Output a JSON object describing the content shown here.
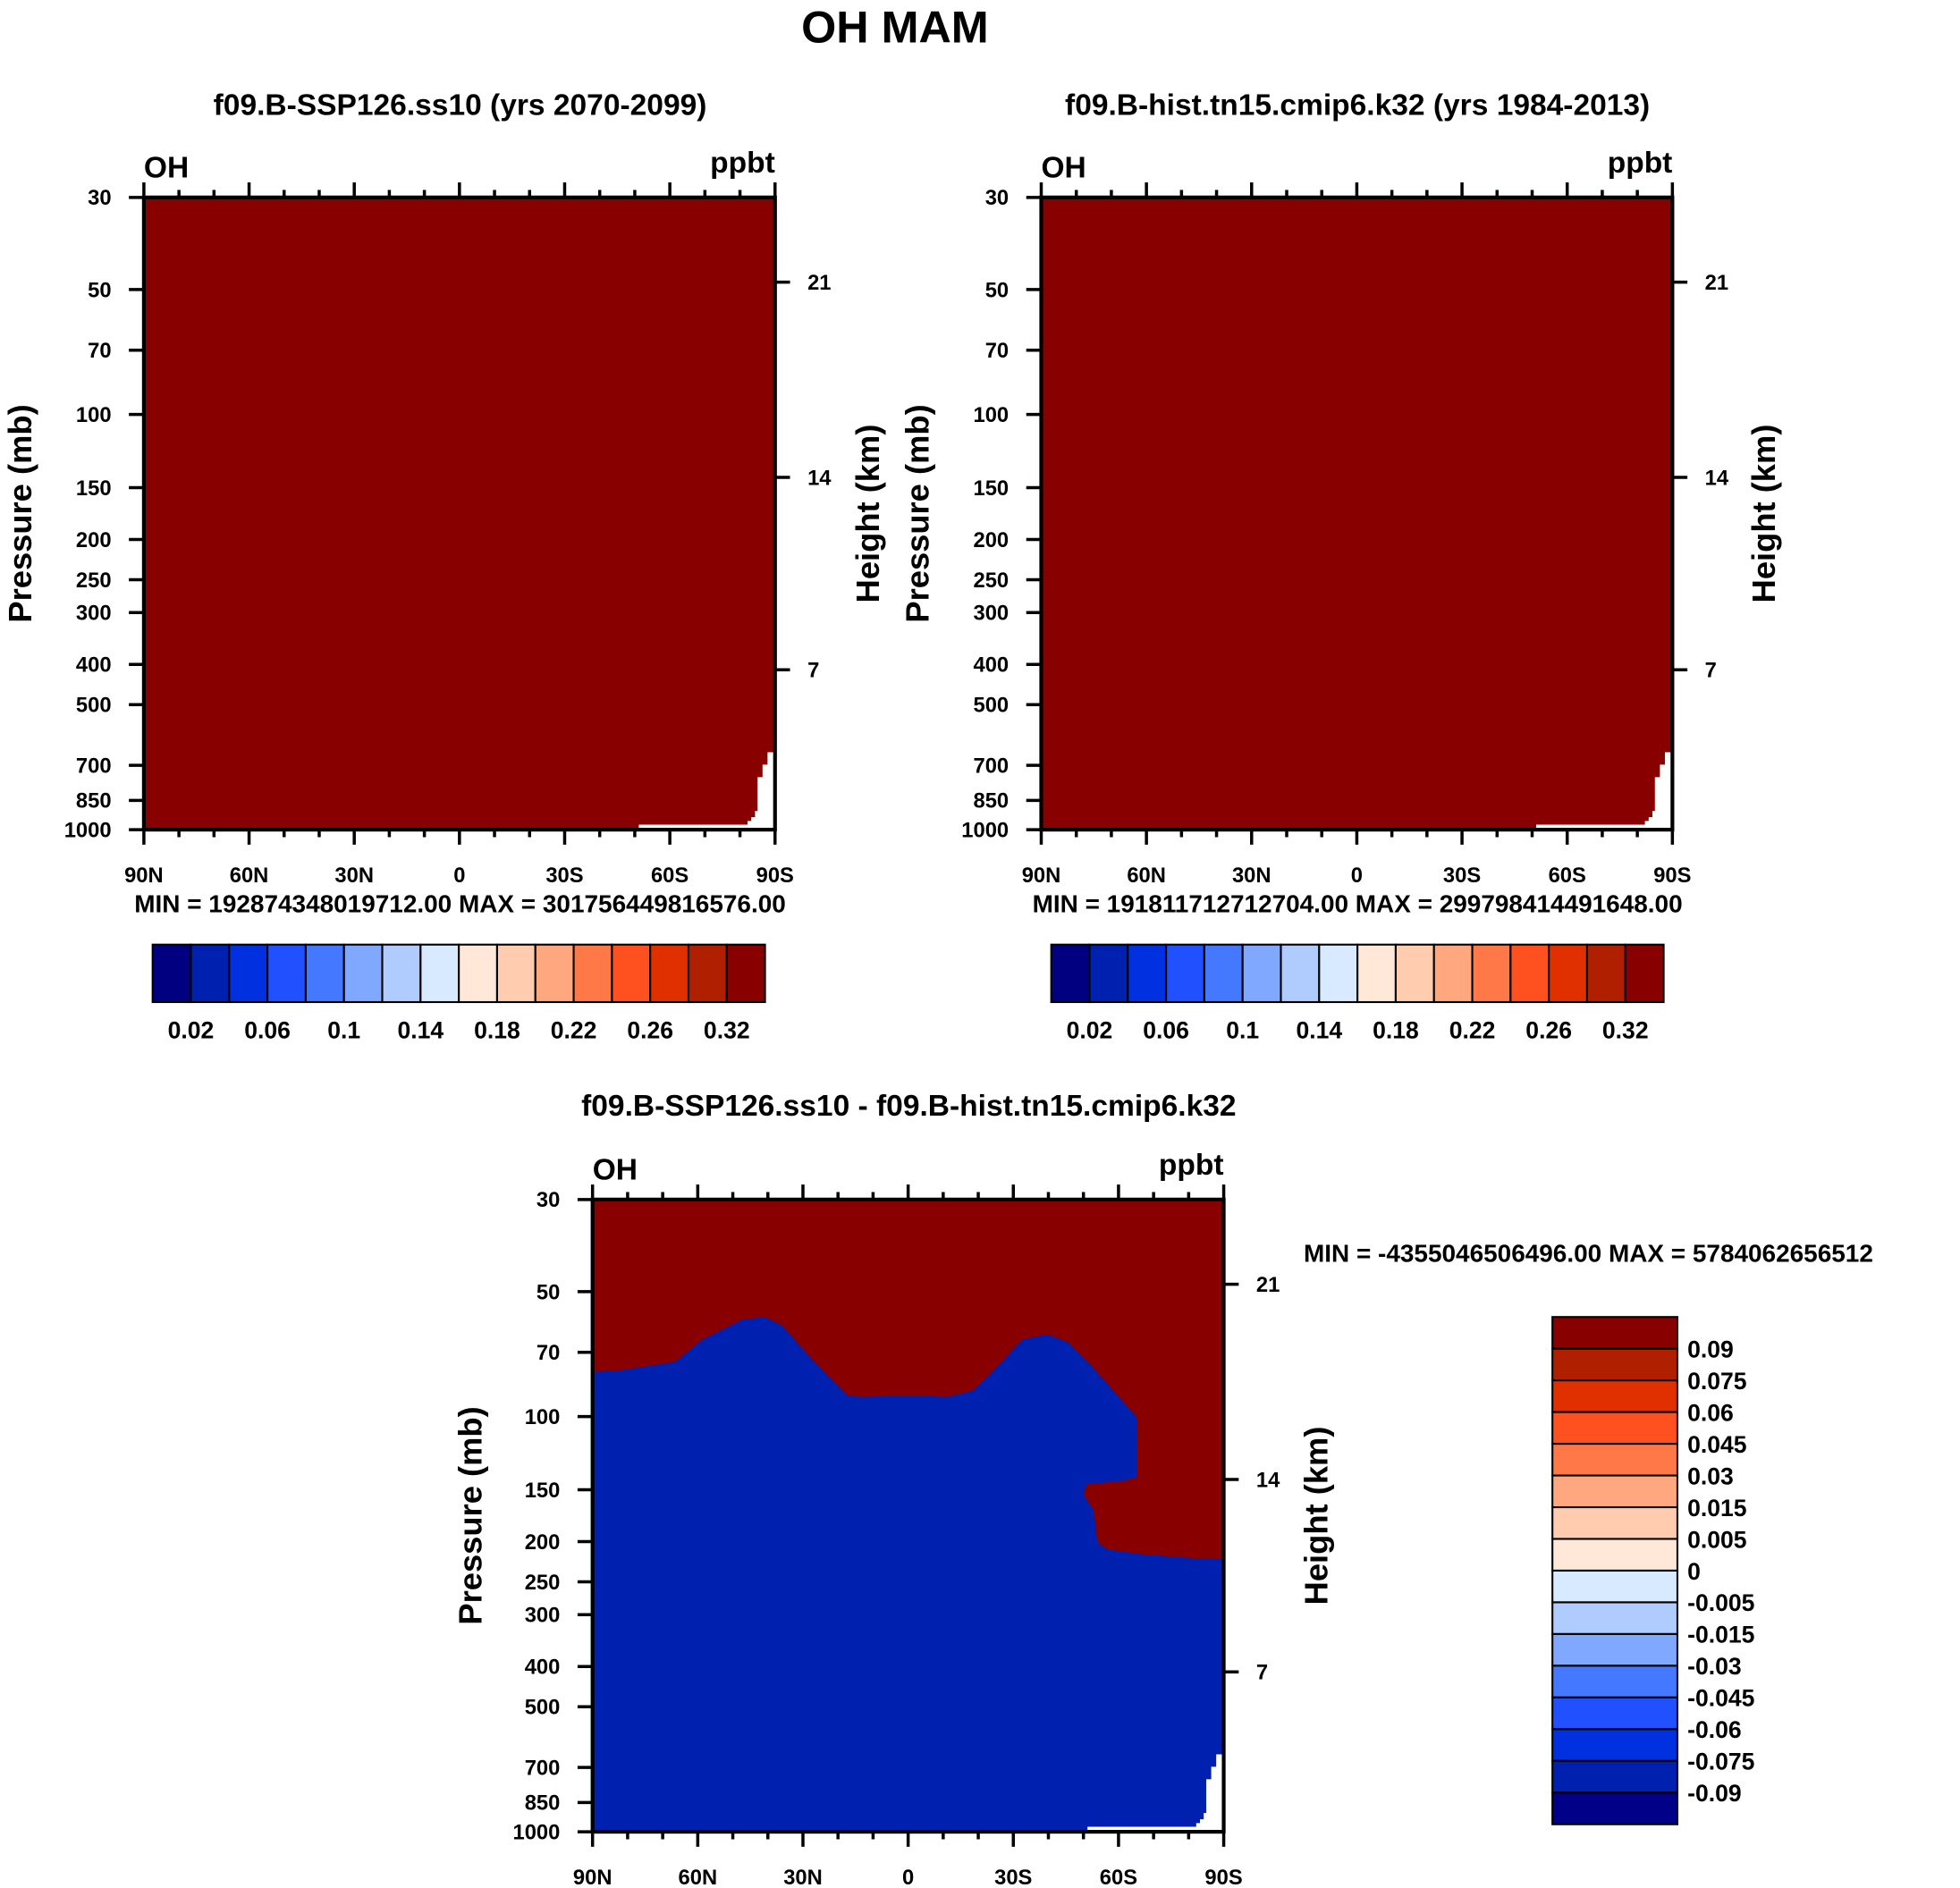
{
  "chart_data": {
    "type": "heatmap",
    "title": "OH MAM",
    "axes": {
      "x_tick_labels": [
        "90N",
        "60N",
        "30N",
        "0",
        "30S",
        "60S",
        "90S"
      ],
      "x_range": [
        90,
        -90
      ],
      "y_ticks": [
        30,
        50,
        70,
        100,
        150,
        200,
        250,
        300,
        400,
        500,
        700,
        850,
        1000
      ],
      "y_range": [
        30,
        1000
      ],
      "y_scale": "log",
      "y2_tick_labels": [
        "21",
        "14",
        "7"
      ],
      "ylabel": "Pressure (mb)",
      "y2label": "Height (km)"
    },
    "panels": [
      {
        "title": "f09.B-SSP126.ss10 (yrs 2070-2099)",
        "left_label": "OH",
        "right_label": "ppbt",
        "min_max": "MIN = 192874348019712.00  MAX = 301756449816576.00",
        "fill_level_index": 15,
        "colorbar": {
          "orientation": "horizontal",
          "colors": [
            "#000080",
            "#0020b0",
            "#0030e0",
            "#2050ff",
            "#4478ff",
            "#80a8ff",
            "#b0ccff",
            "#d8eaff",
            "#ffe8d8",
            "#ffccb0",
            "#ffa880",
            "#ff7848",
            "#ff5020",
            "#e03000",
            "#b02000",
            "#880000"
          ],
          "labels": [
            "0.02",
            "0.06",
            "0.1",
            "0.14",
            "0.18",
            "0.22",
            "0.26",
            "0.32"
          ]
        }
      },
      {
        "title": "f09.B-hist.tn15.cmip6.k32 (yrs 1984-2013)",
        "left_label": "OH",
        "right_label": "ppbt",
        "min_max": "MIN = 191811712712704.00  MAX = 299798414491648.00",
        "fill_level_index": 15,
        "colorbar": {
          "orientation": "horizontal",
          "colors": [
            "#000080",
            "#0020b0",
            "#0030e0",
            "#2050ff",
            "#4478ff",
            "#80a8ff",
            "#b0ccff",
            "#d8eaff",
            "#ffe8d8",
            "#ffccb0",
            "#ffa880",
            "#ff7848",
            "#ff5020",
            "#e03000",
            "#b02000",
            "#880000"
          ],
          "labels": [
            "0.02",
            "0.06",
            "0.1",
            "0.14",
            "0.18",
            "0.22",
            "0.26",
            "0.32"
          ]
        }
      },
      {
        "title": "f09.B-SSP126.ss10 - f09.B-hist.tn15.cmip6.k32",
        "left_label": "OH",
        "right_label": "ppbt",
        "min_max": "MIN = -4355046506496.00  MAX = 5784062656512",
        "fill_level_index": 0,
        "contour_boundary_level_index": 1,
        "colorbar": {
          "orientation": "vertical",
          "colors": [
            "#880000",
            "#b02000",
            "#e03000",
            "#ff5020",
            "#ff7848",
            "#ffa880",
            "#ffccb0",
            "#ffe8d8",
            "#d8eaff",
            "#b0ccff",
            "#80a8ff",
            "#4478ff",
            "#2050ff",
            "#0030e0",
            "#0020b0",
            "#000088"
          ],
          "labels": [
            "0.09",
            "0.075",
            "0.06",
            "0.045",
            "0.03",
            "0.015",
            "0.005",
            "0",
            "-0.005",
            "-0.015",
            "-0.03",
            "-0.045",
            "-0.06",
            "-0.075",
            "-0.09"
          ]
        }
      }
    ]
  }
}
